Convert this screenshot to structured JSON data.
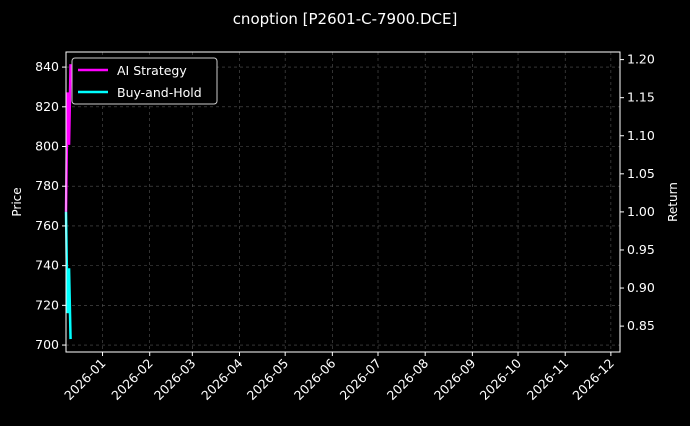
{
  "chart_data": {
    "type": "line",
    "title": "cnoption [P2601-C-7900.DCE]",
    "ylabel_left": "Price",
    "ylabel_right": "Return",
    "xlabel": "",
    "ylim_left": [
      696.5,
      847.6
    ],
    "ylim_right": [
      0.816,
      1.21
    ],
    "xlim": [
      "2025-12-08",
      "2026-12-07"
    ],
    "left_ticks": [
      700,
      720,
      740,
      760,
      780,
      800,
      820,
      840
    ],
    "right_ticks": [
      "0.85",
      "0.90",
      "0.95",
      "1.00",
      "1.05",
      "1.10",
      "1.15",
      "1.20"
    ],
    "right_tick_values": [
      0.85,
      0.9,
      0.95,
      1.0,
      1.05,
      1.1,
      1.15,
      1.2
    ],
    "x_ticks": [
      "2026-01",
      "2026-02",
      "2026-03",
      "2026-04",
      "2026-05",
      "2026-06",
      "2026-07",
      "2026-08",
      "2026-09",
      "2026-10",
      "2026-11",
      "2026-12"
    ],
    "grid": true,
    "legend_position": "top-left",
    "background": "#000000",
    "series": [
      {
        "name": "AI Strategy",
        "color": "#ff00ff",
        "axis": "right",
        "x": [
          "2025-12-08",
          "2025-12-09",
          "2025-12-10",
          "2025-12-11"
        ],
        "values": [
          1.0,
          1.157,
          1.088,
          1.194
        ]
      },
      {
        "name": "Buy-and-Hold",
        "color": "#00ffff",
        "axis": "right",
        "x": [
          "2025-12-08",
          "2025-12-09",
          "2025-12-10",
          "2025-12-11"
        ],
        "values": [
          1.0,
          0.867,
          0.926,
          0.833
        ]
      }
    ]
  }
}
